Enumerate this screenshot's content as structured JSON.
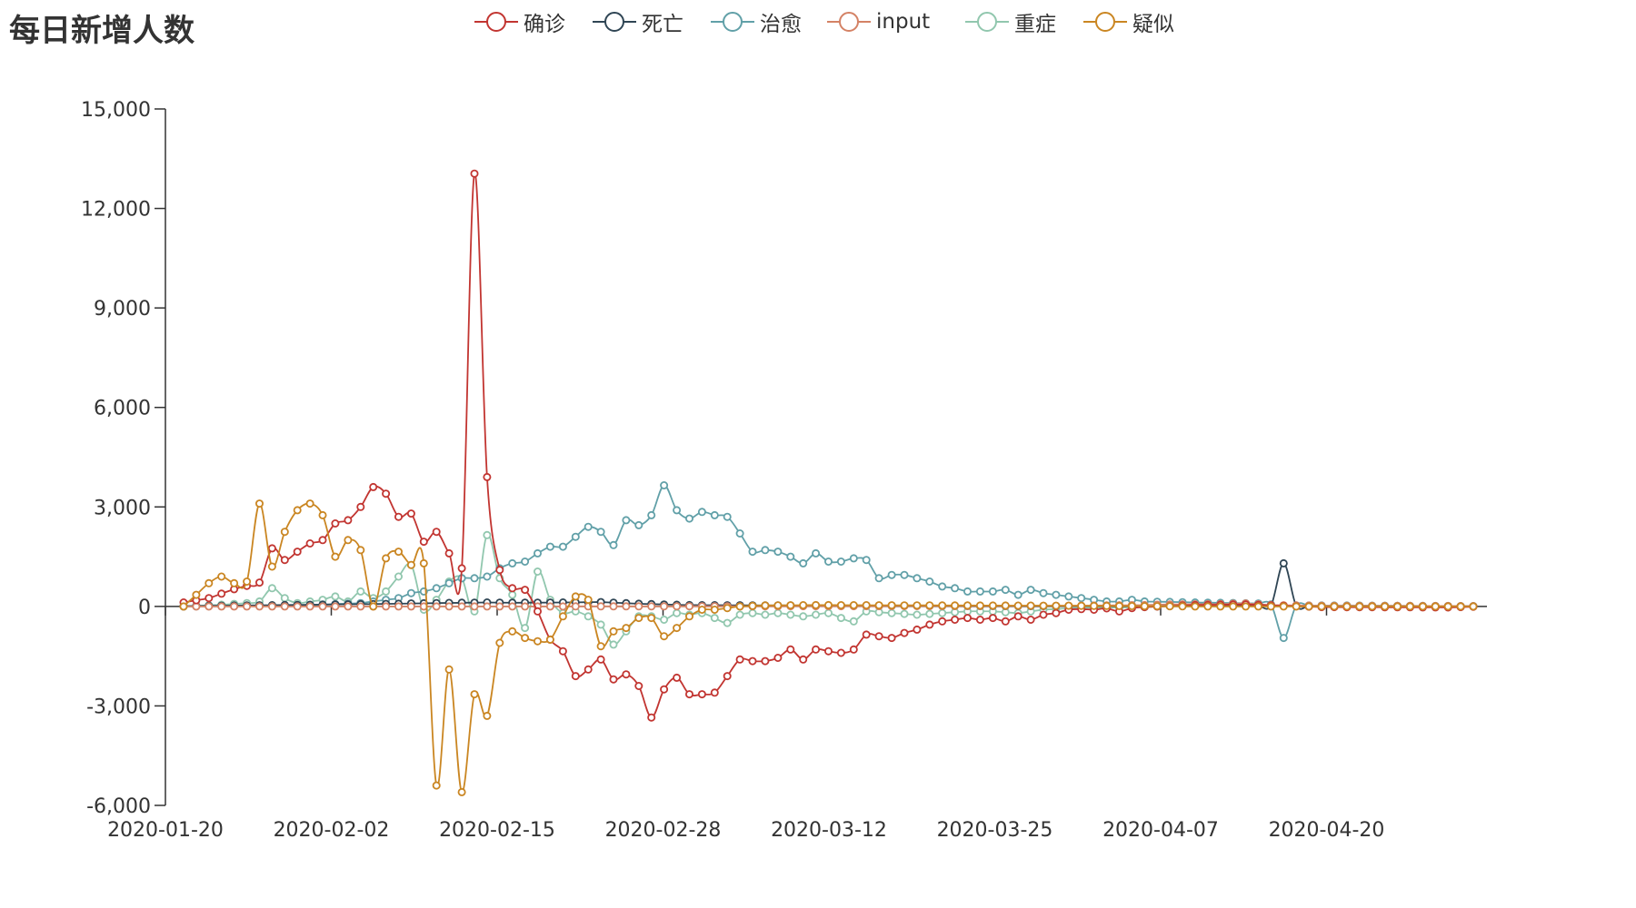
{
  "chart_data": {
    "type": "line",
    "title": "每日新增人数",
    "xlabel": "",
    "ylabel": "",
    "ylim": [
      -6000,
      15000
    ],
    "y_ticks": [
      -6000,
      -3000,
      0,
      3000,
      6000,
      9000,
      12000,
      15000
    ],
    "y_tick_labels": [
      "-6,000",
      "-3,000",
      "0",
      "3,000",
      "6,000",
      "9,000",
      "12,000",
      "15,000"
    ],
    "x_tick_labels": [
      "2020-01-20",
      "2020-02-02",
      "2020-02-15",
      "2020-02-28",
      "2020-03-12",
      "2020-03-25",
      "2020-04-07",
      "2020-04-20"
    ],
    "x_tick_positions": [
      0,
      13,
      26,
      39,
      52,
      65,
      78,
      91
    ],
    "n_points": 103,
    "grid": false,
    "legend_position": "top-center",
    "series": [
      {
        "name": "确诊",
        "color": "#c23531",
        "keypoints": [
          [
            0,
            120
          ],
          [
            2,
            250
          ],
          [
            4,
            520
          ],
          [
            6,
            720
          ],
          [
            7,
            1750
          ],
          [
            8,
            1400
          ],
          [
            10,
            1900
          ],
          [
            11,
            2000
          ],
          [
            12,
            2500
          ],
          [
            13,
            2600
          ],
          [
            14,
            3000
          ],
          [
            15,
            3600
          ],
          [
            16,
            3400
          ],
          [
            17,
            2700
          ],
          [
            18,
            2800
          ],
          [
            19,
            1950
          ],
          [
            20,
            2250
          ],
          [
            21,
            1600
          ],
          [
            22,
            1150
          ],
          [
            23,
            13050
          ],
          [
            24,
            3900
          ],
          [
            25,
            1100
          ],
          [
            26,
            550
          ],
          [
            27,
            500
          ],
          [
            28,
            -150
          ],
          [
            29,
            -1000
          ],
          [
            30,
            -1350
          ],
          [
            31,
            -2100
          ],
          [
            32,
            -1900
          ],
          [
            33,
            -1600
          ],
          [
            34,
            -2200
          ],
          [
            35,
            -2050
          ],
          [
            36,
            -2400
          ],
          [
            37,
            -3350
          ],
          [
            38,
            -2500
          ],
          [
            39,
            -2150
          ],
          [
            40,
            -2650
          ],
          [
            41,
            -2650
          ],
          [
            42,
            -2600
          ],
          [
            43,
            -2100
          ],
          [
            44,
            -1600
          ],
          [
            45,
            -1650
          ],
          [
            46,
            -1650
          ],
          [
            47,
            -1550
          ],
          [
            48,
            -1300
          ],
          [
            49,
            -1600
          ],
          [
            50,
            -1300
          ],
          [
            51,
            -1350
          ],
          [
            52,
            -1400
          ],
          [
            53,
            -1300
          ],
          [
            54,
            -850
          ],
          [
            55,
            -900
          ],
          [
            56,
            -950
          ],
          [
            57,
            -800
          ],
          [
            58,
            -700
          ],
          [
            59,
            -550
          ],
          [
            60,
            -450
          ],
          [
            61,
            -400
          ],
          [
            62,
            -350
          ],
          [
            63,
            -400
          ],
          [
            64,
            -350
          ],
          [
            65,
            -450
          ],
          [
            66,
            -300
          ],
          [
            67,
            -400
          ],
          [
            68,
            -250
          ],
          [
            69,
            -200
          ],
          [
            70,
            -100
          ],
          [
            71,
            -80
          ],
          [
            72,
            -100
          ],
          [
            73,
            -60
          ],
          [
            74,
            -150
          ],
          [
            75,
            -50
          ],
          [
            76,
            -20
          ],
          [
            80,
            40
          ],
          [
            84,
            60
          ],
          [
            86,
            30
          ],
          [
            90,
            -20
          ],
          [
            100,
            -30
          ],
          [
            102,
            -10
          ]
        ]
      },
      {
        "name": "死亡",
        "color": "#2f4554",
        "keypoints": [
          [
            0,
            10
          ],
          [
            5,
            30
          ],
          [
            10,
            50
          ],
          [
            15,
            70
          ],
          [
            20,
            100
          ],
          [
            24,
            120
          ],
          [
            26,
            110
          ],
          [
            30,
            120
          ],
          [
            33,
            130
          ],
          [
            36,
            80
          ],
          [
            40,
            40
          ],
          [
            46,
            30
          ],
          [
            60,
            15
          ],
          [
            75,
            5
          ],
          [
            86,
            20
          ],
          [
            87,
            1300
          ],
          [
            88,
            15
          ],
          [
            92,
            10
          ],
          [
            102,
            5
          ]
        ]
      },
      {
        "name": "治愈",
        "color": "#61a0a8",
        "keypoints": [
          [
            0,
            0
          ],
          [
            5,
            10
          ],
          [
            10,
            40
          ],
          [
            14,
            100
          ],
          [
            15,
            150
          ],
          [
            17,
            250
          ],
          [
            18,
            400
          ],
          [
            19,
            450
          ],
          [
            20,
            550
          ],
          [
            21,
            700
          ],
          [
            22,
            850
          ],
          [
            23,
            850
          ],
          [
            24,
            900
          ],
          [
            25,
            1150
          ],
          [
            26,
            1300
          ],
          [
            27,
            1350
          ],
          [
            28,
            1600
          ],
          [
            29,
            1800
          ],
          [
            30,
            1800
          ],
          [
            31,
            2100
          ],
          [
            32,
            2400
          ],
          [
            33,
            2250
          ],
          [
            34,
            1850
          ],
          [
            35,
            2600
          ],
          [
            36,
            2450
          ],
          [
            37,
            2750
          ],
          [
            38,
            3650
          ],
          [
            39,
            2900
          ],
          [
            40,
            2650
          ],
          [
            41,
            2850
          ],
          [
            42,
            2750
          ],
          [
            43,
            2700
          ],
          [
            44,
            2200
          ],
          [
            45,
            1650
          ],
          [
            46,
            1700
          ],
          [
            47,
            1650
          ],
          [
            48,
            1500
          ],
          [
            49,
            1300
          ],
          [
            50,
            1600
          ],
          [
            51,
            1350
          ],
          [
            52,
            1350
          ],
          [
            53,
            1450
          ],
          [
            54,
            1400
          ],
          [
            55,
            850
          ],
          [
            56,
            950
          ],
          [
            57,
            950
          ],
          [
            58,
            850
          ],
          [
            59,
            750
          ],
          [
            60,
            600
          ],
          [
            61,
            550
          ],
          [
            62,
            450
          ],
          [
            63,
            450
          ],
          [
            64,
            450
          ],
          [
            65,
            500
          ],
          [
            66,
            350
          ],
          [
            67,
            500
          ],
          [
            68,
            400
          ],
          [
            69,
            350
          ],
          [
            70,
            300
          ],
          [
            71,
            250
          ],
          [
            72,
            200
          ],
          [
            73,
            150
          ],
          [
            74,
            150
          ],
          [
            75,
            200
          ],
          [
            76,
            150
          ],
          [
            80,
            120
          ],
          [
            85,
            90
          ],
          [
            86,
            60
          ],
          [
            87,
            -950
          ],
          [
            88,
            30
          ],
          [
            92,
            20
          ],
          [
            102,
            10
          ]
        ]
      },
      {
        "name": "input",
        "color": "#d48265",
        "keypoints": [
          [
            0,
            0
          ],
          [
            30,
            0
          ],
          [
            60,
            10
          ],
          [
            70,
            20
          ],
          [
            76,
            40
          ],
          [
            78,
            60
          ],
          [
            82,
            70
          ],
          [
            84,
            90
          ],
          [
            86,
            40
          ],
          [
            90,
            20
          ],
          [
            102,
            10
          ]
        ]
      },
      {
        "name": "重症",
        "color": "#91c7ae",
        "keypoints": [
          [
            0,
            0
          ],
          [
            3,
            50
          ],
          [
            5,
            100
          ],
          [
            6,
            150
          ],
          [
            7,
            550
          ],
          [
            8,
            250
          ],
          [
            9,
            100
          ],
          [
            10,
            150
          ],
          [
            11,
            200
          ],
          [
            12,
            300
          ],
          [
            13,
            150
          ],
          [
            14,
            450
          ],
          [
            15,
            250
          ],
          [
            16,
            450
          ],
          [
            17,
            900
          ],
          [
            18,
            1250
          ],
          [
            19,
            -100
          ],
          [
            20,
            200
          ],
          [
            21,
            750
          ],
          [
            22,
            850
          ],
          [
            23,
            -150
          ],
          [
            24,
            2150
          ],
          [
            25,
            850
          ],
          [
            26,
            350
          ],
          [
            27,
            -650
          ],
          [
            28,
            1050
          ],
          [
            29,
            200
          ],
          [
            30,
            -200
          ],
          [
            31,
            -150
          ],
          [
            32,
            -300
          ],
          [
            33,
            -550
          ],
          [
            34,
            -1150
          ],
          [
            35,
            -750
          ],
          [
            36,
            -300
          ],
          [
            37,
            -300
          ],
          [
            38,
            -400
          ],
          [
            39,
            -200
          ],
          [
            40,
            -250
          ],
          [
            41,
            -200
          ],
          [
            42,
            -350
          ],
          [
            43,
            -500
          ],
          [
            44,
            -250
          ],
          [
            45,
            -200
          ],
          [
            46,
            -250
          ],
          [
            47,
            -200
          ],
          [
            48,
            -250
          ],
          [
            49,
            -300
          ],
          [
            50,
            -250
          ],
          [
            51,
            -200
          ],
          [
            52,
            -350
          ],
          [
            53,
            -450
          ],
          [
            54,
            -150
          ],
          [
            56,
            -200
          ],
          [
            58,
            -250
          ],
          [
            60,
            -200
          ],
          [
            62,
            -150
          ],
          [
            64,
            -150
          ],
          [
            66,
            -200
          ],
          [
            68,
            -100
          ],
          [
            70,
            -60
          ],
          [
            72,
            -40
          ],
          [
            74,
            -30
          ],
          [
            76,
            -20
          ],
          [
            80,
            40
          ],
          [
            84,
            30
          ],
          [
            88,
            20
          ],
          [
            92,
            30
          ],
          [
            95,
            20
          ],
          [
            98,
            10
          ],
          [
            102,
            0
          ]
        ]
      },
      {
        "name": "疑似",
        "color": "#ca8622",
        "keypoints": [
          [
            0,
            0
          ],
          [
            1,
            350
          ],
          [
            2,
            700
          ],
          [
            3,
            900
          ],
          [
            4,
            700
          ],
          [
            5,
            750
          ],
          [
            6,
            3100
          ],
          [
            7,
            1200
          ],
          [
            8,
            2250
          ],
          [
            9,
            2900
          ],
          [
            10,
            3100
          ],
          [
            11,
            2750
          ],
          [
            12,
            1500
          ],
          [
            13,
            2000
          ],
          [
            14,
            1700
          ],
          [
            15,
            0
          ],
          [
            16,
            1450
          ],
          [
            17,
            1650
          ],
          [
            18,
            1250
          ],
          [
            19,
            1300
          ],
          [
            20,
            -5400
          ],
          [
            21,
            -1900
          ],
          [
            22,
            -5600
          ],
          [
            23,
            -2650
          ],
          [
            24,
            -3300
          ],
          [
            25,
            -1100
          ],
          [
            26,
            -750
          ],
          [
            27,
            -950
          ],
          [
            28,
            -1050
          ],
          [
            29,
            -1000
          ],
          [
            30,
            -300
          ],
          [
            31,
            300
          ],
          [
            32,
            200
          ],
          [
            33,
            -1200
          ],
          [
            34,
            -750
          ],
          [
            35,
            -650
          ],
          [
            36,
            -350
          ],
          [
            37,
            -350
          ],
          [
            38,
            -900
          ],
          [
            39,
            -650
          ],
          [
            40,
            -300
          ],
          [
            41,
            -100
          ],
          [
            42,
            -100
          ],
          [
            43,
            -50
          ],
          [
            44,
            0
          ],
          [
            46,
            30
          ],
          [
            50,
            40
          ],
          [
            60,
            30
          ],
          [
            70,
            20
          ],
          [
            80,
            0
          ],
          [
            90,
            0
          ],
          [
            102,
            0
          ]
        ]
      }
    ]
  }
}
